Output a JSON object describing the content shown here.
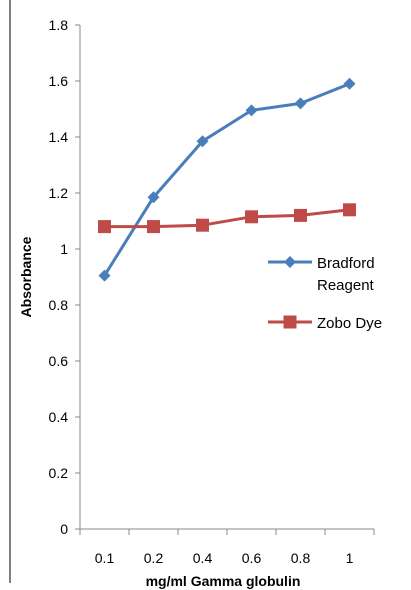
{
  "chart_data": {
    "type": "line",
    "categories": [
      "0.1",
      "0.2",
      "0.4",
      "0.6",
      "0.8",
      "1"
    ],
    "y_ticks": [
      "0",
      "0.2",
      "0.4",
      "0.6",
      "0.8",
      "1",
      "1.2",
      "1.4",
      "1.6",
      "1.8"
    ],
    "ylim": [
      0,
      1.8
    ],
    "xlabel": "mg/ml Gamma globulin",
    "ylabel": "Absorbance",
    "grid": false,
    "legend_position": "right",
    "series": [
      {
        "name_lines": [
          "Bradford",
          "Reagent"
        ],
        "values": [
          0.905,
          1.185,
          1.385,
          1.495,
          1.52,
          1.59
        ],
        "color": "#4a7ebb",
        "marker": "diamond"
      },
      {
        "name_lines": [
          "Zobo Dye"
        ],
        "values": [
          1.08,
          1.08,
          1.085,
          1.115,
          1.12,
          1.14
        ],
        "color": "#be4b48",
        "marker": "square"
      }
    ]
  }
}
